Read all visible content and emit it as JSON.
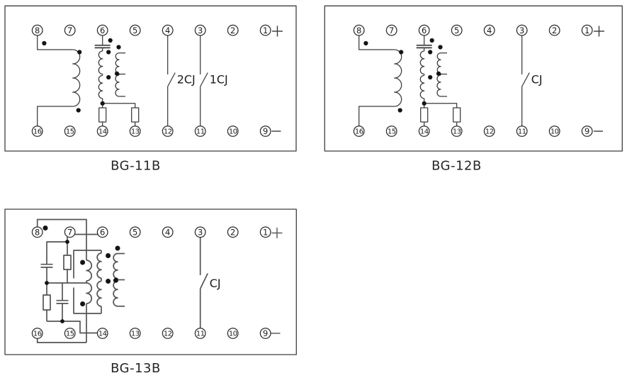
{
  "sheet": {
    "background": "#ffffff"
  },
  "colors": {
    "wire": "#3a3a3a",
    "wire_bg13": "#555555",
    "dot": "#141414",
    "terminal_stroke": "#2c2c2c",
    "text": "#1c1c1c"
  },
  "diagrams": [
    {
      "id": "bg-11b",
      "caption": "BG-11B",
      "polarity_top": "+",
      "polarity_bottom": "−",
      "terminals_top": [
        "8",
        "7",
        "6",
        "5",
        "4",
        "3",
        "2",
        "1"
      ],
      "terminals_bottom": [
        "16",
        "15",
        "14",
        "13",
        "12",
        "11",
        "10",
        "9"
      ],
      "contacts": [
        {
          "label": "2CJ",
          "from": "4",
          "to": "12"
        },
        {
          "label": "1CJ",
          "from": "3",
          "to": "11"
        }
      ]
    },
    {
      "id": "bg-12b",
      "caption": "BG-12B",
      "polarity_top": "+",
      "polarity_bottom": "−",
      "terminals_top": [
        "8",
        "7",
        "6",
        "5",
        "4",
        "3",
        "2",
        "1"
      ],
      "terminals_bottom": [
        "16",
        "15",
        "14",
        "13",
        "12",
        "11",
        "10",
        "9"
      ],
      "contacts": [
        {
          "label": "CJ",
          "from": "3",
          "to": "11"
        }
      ]
    },
    {
      "id": "bg-13b",
      "caption": "BG-13B",
      "polarity_top": "+",
      "polarity_bottom": "−",
      "terminals_top": [
        "8",
        "7",
        "6",
        "5",
        "4",
        "3",
        "2",
        "1"
      ],
      "terminals_bottom": [
        "16",
        "15",
        "14",
        "13",
        "12",
        "11",
        "10",
        "9"
      ],
      "contacts": [
        {
          "label": "CJ",
          "from": "3",
          "to": "11"
        }
      ]
    }
  ]
}
